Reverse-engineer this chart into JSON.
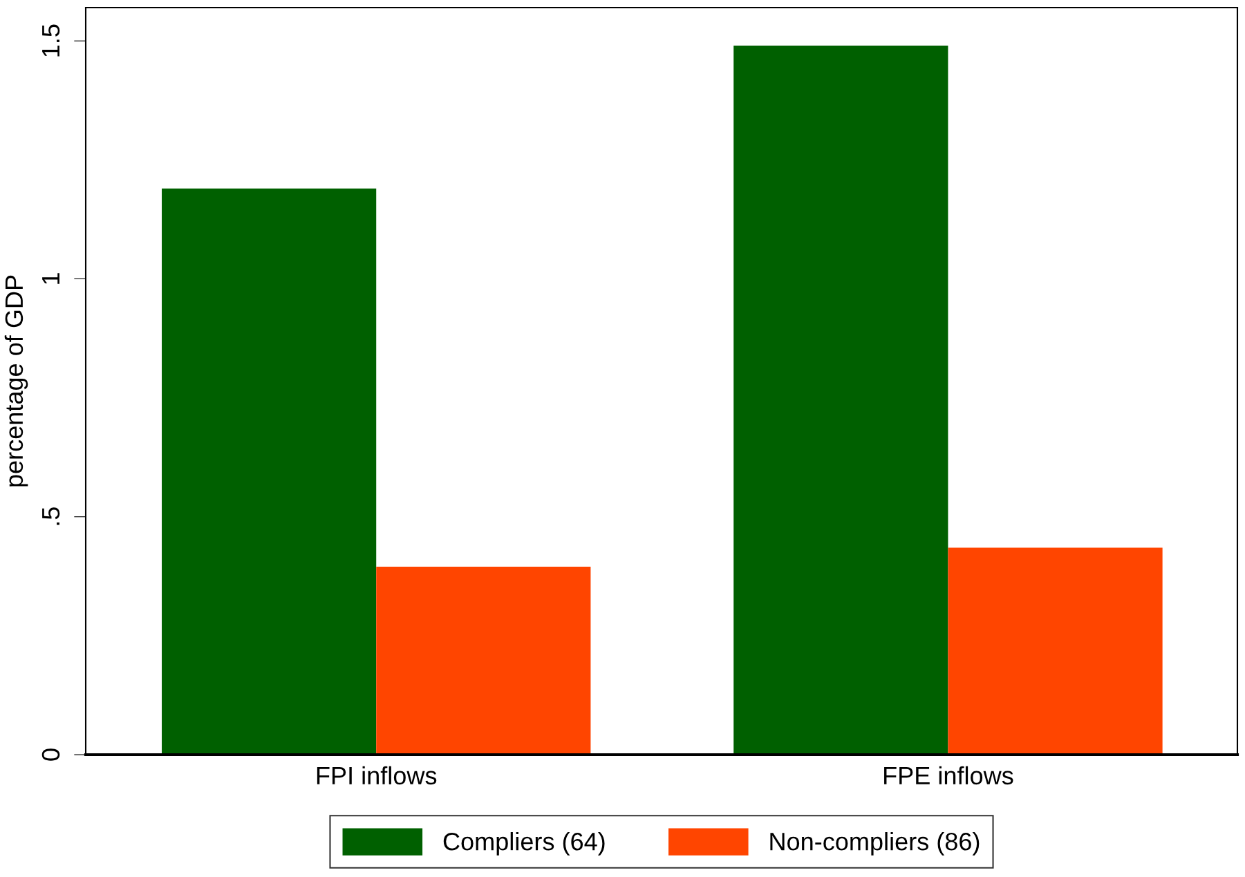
{
  "chart_data": {
    "type": "bar",
    "ylabel": "percentage of GDP",
    "categories": [
      "FPI inflows",
      "FPE inflows"
    ],
    "series": [
      {
        "name": "Compliers (64)",
        "color": "#006000",
        "values": [
          1.19,
          1.49
        ]
      },
      {
        "name": "Non-compliers (86)",
        "color": "#ff4500",
        "values": [
          0.395,
          0.435
        ]
      }
    ],
    "ylim": [
      0,
      1.57
    ],
    "yticks": [
      0,
      {
        "value": 0.5,
        "label": ".5"
      },
      1,
      1.5
    ],
    "grid": false,
    "legend": "bottom"
  }
}
